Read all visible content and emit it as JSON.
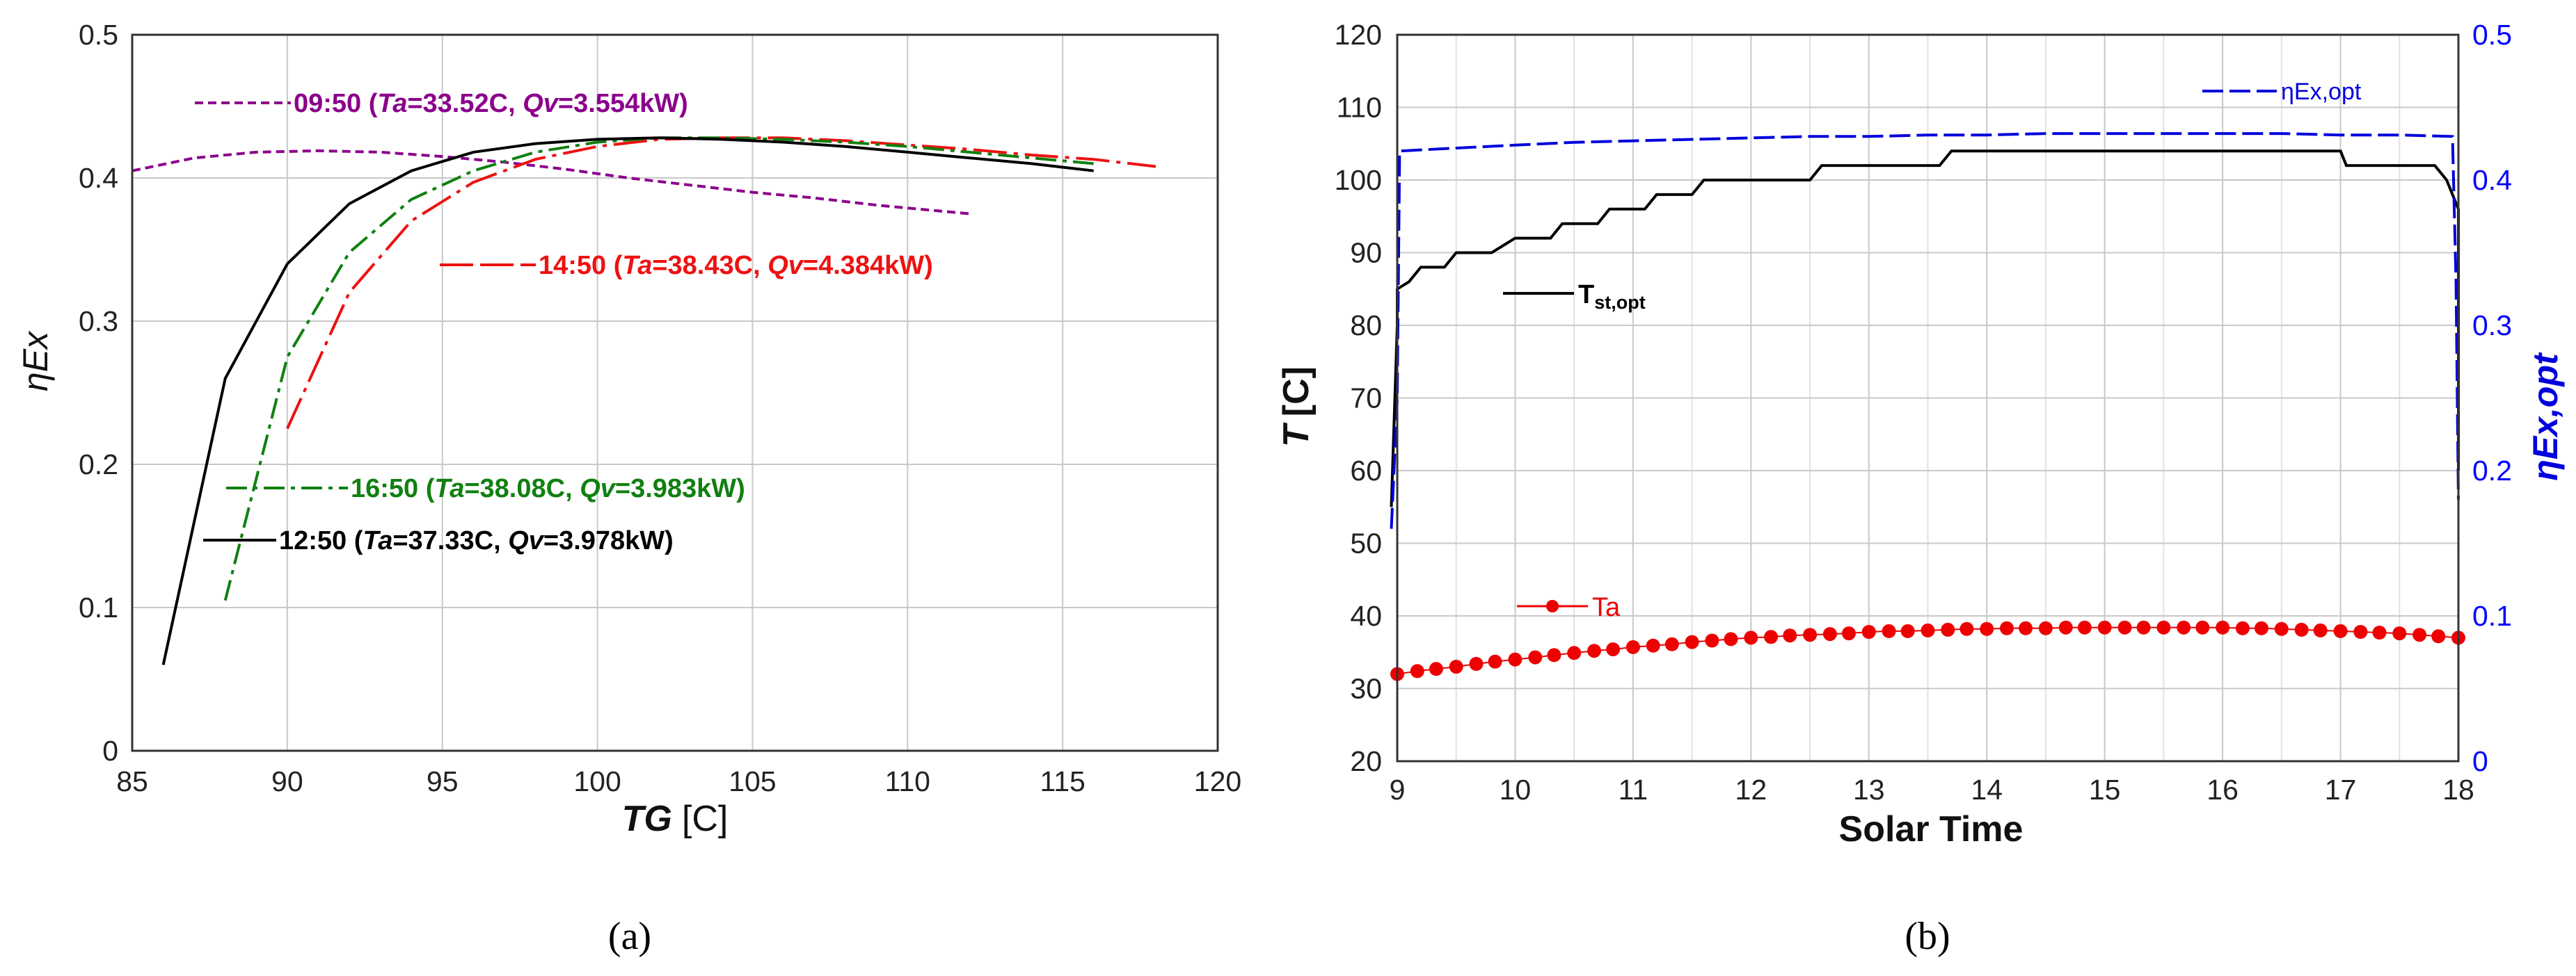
{
  "chart_data": [
    {
      "type": "line",
      "panel": "a",
      "caption": "(a)",
      "ylabel": "ηEx",
      "xlabel_var": "TG",
      "xlabel_unit": "[C]",
      "xlim": [
        85,
        120
      ],
      "ylim": [
        0,
        0.5
      ],
      "x_ticks": [
        "85",
        "90",
        "95",
        "100",
        "105",
        "110",
        "115",
        "120"
      ],
      "y_ticks": [
        "0",
        "0.1",
        "0.2",
        "0.3",
        "0.4",
        "0.5"
      ],
      "grid": true,
      "series": [
        {
          "name": "09:50",
          "label_time": "09:50 (",
          "label_ta_key": "Ta",
          "label_ta_val": "=33.52C, ",
          "label_qv_key": "Qv",
          "label_qv_val": "=3.554kW)",
          "color": "#8b008b",
          "dash": "short",
          "x": [
            85,
            87,
            89,
            91,
            93,
            95,
            97,
            99,
            101,
            103,
            105,
            107,
            109,
            111,
            112
          ],
          "y": [
            0.405,
            0.414,
            0.418,
            0.419,
            0.418,
            0.415,
            0.411,
            0.406,
            0.4,
            0.395,
            0.39,
            0.386,
            0.381,
            0.377,
            0.375
          ]
        },
        {
          "name": "14:50",
          "label_time": "14:50 (",
          "label_ta_key": "Ta",
          "label_ta_val": "=38.43C, ",
          "label_qv_key": "Qv",
          "label_qv_val": "=4.384kW)",
          "color": "#ee1111",
          "dash": "long-dash-dot",
          "x": [
            90,
            92,
            94,
            96,
            98,
            100,
            102,
            104,
            106,
            108,
            110,
            112,
            114,
            116,
            118
          ],
          "y": [
            0.225,
            0.32,
            0.37,
            0.397,
            0.413,
            0.422,
            0.427,
            0.428,
            0.428,
            0.426,
            0.423,
            0.42,
            0.416,
            0.413,
            0.408
          ]
        },
        {
          "name": "16:50",
          "label_time": "16:50 (",
          "label_ta_key": "Ta",
          "label_ta_val": "=38.08C, ",
          "label_qv_key": "Qv",
          "label_qv_val": "=3.983kW)",
          "color": "#108010",
          "dash": "dash-dot",
          "x": [
            88,
            90,
            92,
            94,
            96,
            98,
            100,
            102,
            104,
            106,
            108,
            110,
            112,
            114,
            116
          ],
          "y": [
            0.105,
            0.275,
            0.348,
            0.385,
            0.405,
            0.418,
            0.425,
            0.428,
            0.428,
            0.427,
            0.425,
            0.422,
            0.418,
            0.414,
            0.41
          ]
        },
        {
          "name": "12:50",
          "label_time": "12:50 (",
          "label_ta_key": "Ta",
          "label_ta_val": "=37.33C, ",
          "label_qv_key": "Qv",
          "label_qv_val": "=3.978kW)",
          "color": "#000000",
          "dash": "solid",
          "x": [
            86,
            88,
            90,
            92,
            94,
            96,
            98,
            100,
            102,
            104,
            106,
            108,
            110,
            112,
            114,
            116
          ],
          "y": [
            0.06,
            0.26,
            0.34,
            0.382,
            0.405,
            0.418,
            0.424,
            0.427,
            0.428,
            0.427,
            0.425,
            0.422,
            0.418,
            0.414,
            0.41,
            0.405
          ]
        }
      ]
    },
    {
      "type": "line",
      "panel": "b",
      "caption": "(b)",
      "xlabel": "Solar Time",
      "ylabel_left_var": "T",
      "ylabel_left_unit": "[C]",
      "ylabel_right": "ηEx,opt",
      "xlim": [
        9,
        18
      ],
      "ylim_left": [
        20,
        120
      ],
      "ylim_right": [
        0,
        0.5
      ],
      "x_ticks": [
        "9",
        "10",
        "11",
        "12",
        "13",
        "14",
        "15",
        "16",
        "17",
        "18"
      ],
      "y_ticks_left": [
        "20",
        "30",
        "40",
        "50",
        "60",
        "70",
        "80",
        "90",
        "100",
        "110",
        "120"
      ],
      "y_ticks_right": [
        "0",
        "0.1",
        "0.2",
        "0.3",
        "0.4",
        "0.5"
      ],
      "grid": true,
      "series": [
        {
          "name": "Tst,opt",
          "label_main": "T",
          "label_sub": "st,opt",
          "axis": "left",
          "color": "#000000",
          "style": "solid-step",
          "x": [
            8.95,
            9.0,
            9.0,
            9.1,
            9.2,
            9.2,
            9.4,
            9.5,
            9.5,
            9.8,
            10.0,
            10.0,
            10.3,
            10.4,
            10.4,
            10.7,
            10.8,
            10.8,
            11.1,
            11.2,
            11.2,
            11.5,
            11.6,
            11.6,
            11.9,
            12.0,
            12.0,
            12.5,
            12.6,
            12.6,
            13.1,
            13.2,
            13.2,
            13.6,
            13.7,
            13.7,
            17.0,
            17.05,
            17.05,
            17.8,
            17.9,
            18.0,
            18.0
          ],
          "y": [
            55,
            80,
            85,
            86,
            88,
            88,
            88,
            90,
            90,
            90,
            92,
            92,
            92,
            94,
            94,
            94,
            96,
            96,
            96,
            98,
            98,
            98,
            100,
            100,
            100,
            100,
            100,
            100,
            102,
            102,
            102,
            102,
            102,
            102,
            104,
            104,
            104,
            102,
            102,
            102,
            100,
            96,
            60
          ]
        },
        {
          "name": "ηEx,opt",
          "axis": "right",
          "color": "#0000dd",
          "style": "long-dash",
          "x": [
            8.95,
            9.0,
            9.02,
            9.5,
            10.0,
            10.5,
            11.0,
            11.5,
            12.0,
            12.5,
            13.0,
            13.5,
            14.0,
            14.5,
            15.0,
            15.5,
            16.0,
            16.5,
            17.0,
            17.5,
            17.95,
            17.98,
            18.0
          ],
          "y": [
            0.16,
            0.25,
            0.42,
            0.422,
            0.424,
            0.426,
            0.427,
            0.428,
            0.429,
            0.43,
            0.43,
            0.431,
            0.431,
            0.432,
            0.432,
            0.432,
            0.432,
            0.432,
            0.431,
            0.431,
            0.43,
            0.33,
            0.18
          ]
        },
        {
          "name": "Ta",
          "axis": "left",
          "color": "#ee0000",
          "style": "dotted-markers",
          "x": [
            9.0,
            9.17,
            9.33,
            9.5,
            9.67,
            9.83,
            10.0,
            10.17,
            10.33,
            10.5,
            10.67,
            10.83,
            11.0,
            11.17,
            11.33,
            11.5,
            11.67,
            11.83,
            12.0,
            12.17,
            12.33,
            12.5,
            12.67,
            12.83,
            13.0,
            13.17,
            13.33,
            13.5,
            13.67,
            13.83,
            14.0,
            14.17,
            14.33,
            14.5,
            14.67,
            14.83,
            15.0,
            15.17,
            15.33,
            15.5,
            15.67,
            15.83,
            16.0,
            16.17,
            16.33,
            16.5,
            16.67,
            16.83,
            17.0,
            17.17,
            17.33,
            17.5,
            17.67,
            17.83,
            18.0
          ],
          "y": [
            32.0,
            32.4,
            32.7,
            33.0,
            33.4,
            33.7,
            34.0,
            34.3,
            34.6,
            34.9,
            35.2,
            35.4,
            35.7,
            35.9,
            36.1,
            36.4,
            36.6,
            36.8,
            37.0,
            37.1,
            37.3,
            37.4,
            37.5,
            37.6,
            37.8,
            37.9,
            37.9,
            38.0,
            38.1,
            38.2,
            38.2,
            38.3,
            38.3,
            38.3,
            38.4,
            38.4,
            38.4,
            38.4,
            38.4,
            38.4,
            38.4,
            38.4,
            38.4,
            38.3,
            38.3,
            38.2,
            38.1,
            38.0,
            37.9,
            37.8,
            37.7,
            37.6,
            37.4,
            37.2,
            37.0
          ]
        }
      ]
    }
  ]
}
